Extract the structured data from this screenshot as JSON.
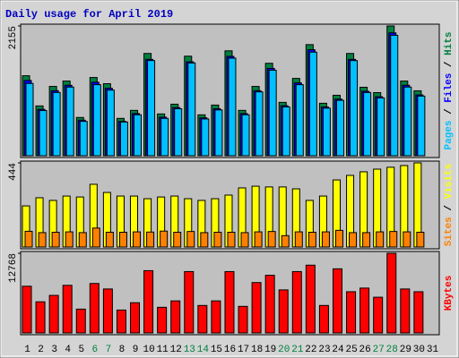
{
  "chart_data": [
    {
      "type": "bar",
      "title": "Daily usage for April 2019",
      "ylim": [
        0,
        2155
      ],
      "yticks": [
        2155
      ],
      "legend_separator": " / ",
      "series": [
        {
          "name": "Hits",
          "color": "#008040",
          "values": [
            1328,
            827,
            1151,
            1240,
            635,
            1299,
            1196,
            620,
            753,
            1698,
            694,
            856,
            1653,
            679,
            841,
            1742,
            753,
            1151,
            1535,
            886,
            1284,
            1845,
            871,
            1004,
            1698,
            1137,
            1048,
            2155,
            1240,
            1078,
            null
          ]
        },
        {
          "name": "Files",
          "color": "#0000ff",
          "values": [
            1250,
            770,
            1080,
            1170,
            590,
            1220,
            1120,
            570,
            700,
            1600,
            640,
            800,
            1560,
            630,
            780,
            1650,
            700,
            1080,
            1450,
            830,
            1210,
            1760,
            810,
            940,
            1600,
            1070,
            980,
            2040,
            1170,
            1010,
            null
          ]
        },
        {
          "name": "Pages",
          "color": "#00c0ff",
          "values": [
            1200,
            750,
            1050,
            1140,
            570,
            1180,
            1090,
            560,
            680,
            1580,
            620,
            780,
            1540,
            610,
            760,
            1620,
            680,
            1060,
            1420,
            810,
            1180,
            1720,
            790,
            920,
            1580,
            1050,
            960,
            2000,
            1140,
            990,
            null
          ]
        }
      ]
    },
    {
      "type": "bar",
      "ylim": [
        0,
        444
      ],
      "yticks": [
        444
      ],
      "legend_separator": " / ",
      "series": [
        {
          "name": "Visits",
          "color": "#ffff00",
          "values": [
            217,
            260,
            246,
            269,
            264,
            331,
            288,
            269,
            269,
            255,
            264,
            269,
            255,
            246,
            255,
            274,
            312,
            321,
            317,
            317,
            307,
            246,
            269,
            354,
            378,
            397,
            411,
            421,
            430,
            444,
            null
          ]
        },
        {
          "name": "Sites",
          "color": "#ff8000",
          "values": [
            83,
            76,
            78,
            80,
            76,
            100,
            78,
            78,
            80,
            79,
            84,
            78,
            82,
            76,
            78,
            78,
            76,
            80,
            82,
            60,
            80,
            78,
            80,
            88,
            76,
            76,
            80,
            82,
            80,
            78,
            null
          ]
        }
      ]
    },
    {
      "type": "bar",
      "ylim": [
        0,
        12768
      ],
      "yticks": [
        12768
      ],
      "categories": [
        "1",
        "2",
        "3",
        "4",
        "5",
        "6",
        "7",
        "8",
        "9",
        "10",
        "11",
        "12",
        "13",
        "14",
        "15",
        "16",
        "17",
        "18",
        "19",
        "20",
        "21",
        "22",
        "23",
        "24",
        "25",
        "26",
        "27",
        "28",
        "29",
        "30",
        "31"
      ],
      "category_colors": [
        "#000000",
        "#000000",
        "#000000",
        "#000000",
        "#000000",
        "#008040",
        "#008040",
        "#000000",
        "#000000",
        "#000000",
        "#000000",
        "#000000",
        "#008040",
        "#008040",
        "#000000",
        "#000000",
        "#000000",
        "#000000",
        "#000000",
        "#008040",
        "#008040",
        "#000000",
        "#000000",
        "#000000",
        "#000000",
        "#000000",
        "#008040",
        "#008040",
        "#000000",
        "#000000",
        "#000000"
      ],
      "series": [
        {
          "name": "KBytes",
          "color": "#ff0000",
          "values": [
            7487,
            4991,
            6019,
            7633,
            3817,
            7927,
            7046,
            3670,
            4844,
            9982,
            4110,
            5138,
            9835,
            4404,
            5138,
            9835,
            4257,
            8074,
            9248,
            6899,
            9835,
            10863,
            4404,
            10276,
            6606,
            7193,
            5725,
            12768,
            7046,
            6606,
            null
          ]
        }
      ]
    }
  ]
}
